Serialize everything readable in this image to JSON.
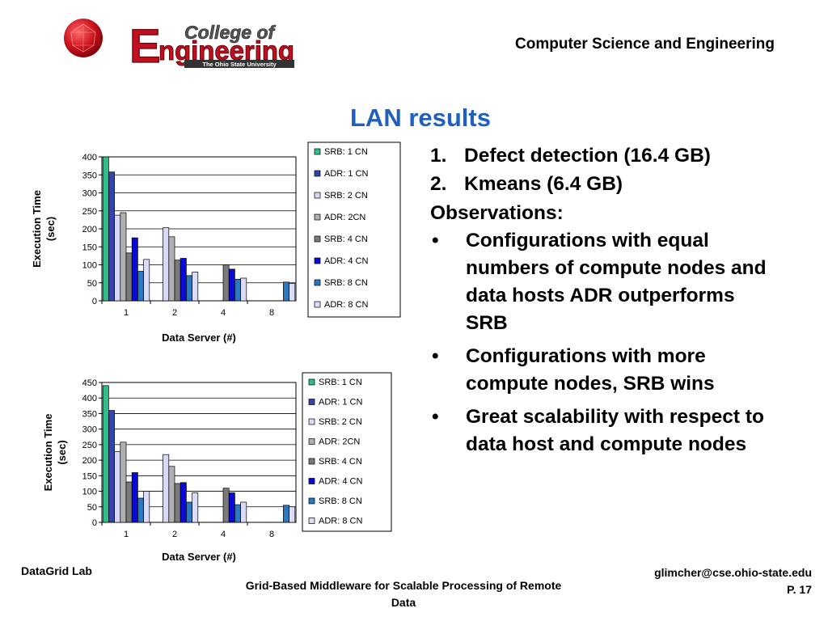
{
  "header": {
    "logo_text": "College of Engineering",
    "logo_subtext": "The Ohio State University",
    "department": "Computer Science and Engineering"
  },
  "slide": {
    "title": "LAN results",
    "numbered": [
      {
        "num": "1.",
        "text": "Defect detection (16.4 GB)"
      },
      {
        "num": "2.",
        "text": "Kmeans (6.4 GB)"
      }
    ],
    "observations_label": "Observations:",
    "bullets": [
      "Configurations with equal numbers of compute nodes and data hosts ADR outperforms SRB",
      "Configurations with more compute nodes, SRB wins",
      "Great scalability with respect to data host and compute nodes"
    ]
  },
  "footer": {
    "lab": "DataGrid Lab",
    "talk_title": "Grid-Based Middleware for Scalable Processing of Remote Data",
    "email": "glimcher@cse.ohio-state.edu",
    "page": "P. 17"
  },
  "chart_data": [
    {
      "type": "bar",
      "categories": [
        "1",
        "2",
        "4",
        "8"
      ],
      "xlabel": "Data Server (#)",
      "ylabel": "Execution Time (sec)",
      "ylim": [
        0,
        400
      ],
      "yticks": [
        0,
        50,
        100,
        150,
        200,
        250,
        300,
        350,
        400
      ],
      "grid": true,
      "legend": "right",
      "series": [
        {
          "name": "SRB: 1 CN",
          "color": "#2fbf8a",
          "values": [
            400,
            null,
            null,
            null
          ]
        },
        {
          "name": "ADR: 1 CN",
          "color": "#3344aa",
          "values": [
            358,
            null,
            null,
            null
          ]
        },
        {
          "name": "SRB: 2 CN",
          "color": "#d8d8f8",
          "values": [
            238,
            203,
            null,
            null
          ]
        },
        {
          "name": "ADR: 2CN",
          "color": "#b0b0b0",
          "values": [
            245,
            178,
            null,
            null
          ]
        },
        {
          "name": "SRB: 4 CN",
          "color": "#7a7a7a",
          "values": [
            133,
            113,
            100,
            null
          ]
        },
        {
          "name": "ADR: 4 CN",
          "color": "#0a0ad8",
          "values": [
            175,
            118,
            88,
            null
          ]
        },
        {
          "name": "SRB: 8 CN",
          "color": "#2a78c2",
          "values": [
            82,
            70,
            60,
            52
          ]
        },
        {
          "name": "ADR: 8 CN",
          "color": "#dcdcf8",
          "values": [
            115,
            80,
            63,
            48
          ]
        }
      ]
    },
    {
      "type": "bar",
      "categories": [
        "1",
        "2",
        "4",
        "8"
      ],
      "xlabel": "Data Server (#)",
      "ylabel": "Execution Time (sec)",
      "ylim": [
        0,
        450
      ],
      "yticks": [
        0,
        50,
        100,
        150,
        200,
        250,
        300,
        350,
        400,
        450
      ],
      "grid": true,
      "legend": "right",
      "series": [
        {
          "name": "SRB: 1 CN",
          "color": "#2fbf8a",
          "values": [
            440,
            null,
            null,
            null
          ]
        },
        {
          "name": "ADR: 1 CN",
          "color": "#3344aa",
          "values": [
            360,
            null,
            null,
            null
          ]
        },
        {
          "name": "SRB: 2 CN",
          "color": "#d8d8f8",
          "values": [
            228,
            218,
            null,
            null
          ]
        },
        {
          "name": "ADR: 2CN",
          "color": "#b0b0b0",
          "values": [
            258,
            180,
            null,
            null
          ]
        },
        {
          "name": "SRB: 4 CN",
          "color": "#7a7a7a",
          "values": [
            130,
            125,
            110,
            null
          ]
        },
        {
          "name": "ADR: 4 CN",
          "color": "#0a0ad8",
          "values": [
            160,
            128,
            95,
            null
          ]
        },
        {
          "name": "SRB: 8 CN",
          "color": "#2a78c2",
          "values": [
            78,
            65,
            57,
            55
          ]
        },
        {
          "name": "ADR: 8 CN",
          "color": "#dcdcf8",
          "values": [
            100,
            95,
            65,
            50
          ]
        }
      ]
    }
  ]
}
